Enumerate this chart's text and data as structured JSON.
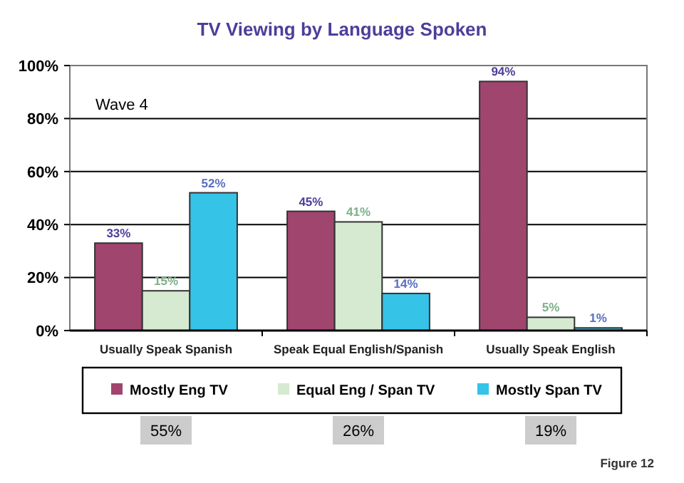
{
  "chart_data": {
    "type": "bar",
    "title": "TV Viewing by Language Spoken",
    "categories": [
      "Usually Speak Spanish",
      "Speak Equal English/Spanish",
      "Usually Speak English"
    ],
    "series": [
      {
        "name": "Mostly Eng TV",
        "color": "#a0456e",
        "values": [
          33,
          45,
          94
        ],
        "value_labels": [
          "33%",
          "45%",
          "94%"
        ]
      },
      {
        "name": "Equal Eng / Span TV",
        "color": "#d5ead0",
        "values": [
          15,
          41,
          5
        ],
        "value_labels": [
          "15%",
          "41%",
          "5%"
        ]
      },
      {
        "name": "Mostly Span TV",
        "color": "#36c3e8",
        "values": [
          52,
          14,
          1
        ],
        "value_labels": [
          "52%",
          "14%",
          "1%"
        ]
      }
    ],
    "ylim": [
      0,
      100
    ],
    "yticks": [
      {
        "value": 0,
        "label": "0%"
      },
      {
        "value": 20,
        "label": "20%"
      },
      {
        "value": 40,
        "label": "40%"
      },
      {
        "value": 60,
        "label": "60%"
      },
      {
        "value": 80,
        "label": "80%"
      },
      {
        "value": 100,
        "label": "100%"
      }
    ],
    "grid": "y",
    "legend": "bottom",
    "annotations": [
      "Wave 4",
      "55%",
      "26%",
      "19%",
      "Figure 12"
    ]
  }
}
